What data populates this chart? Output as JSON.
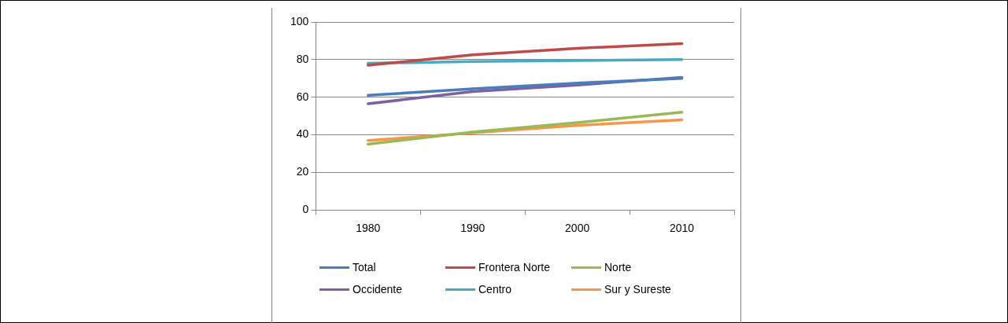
{
  "chart_data": {
    "type": "line",
    "categories": [
      "1980",
      "1990",
      "2000",
      "2010"
    ],
    "series": [
      {
        "name": "Total",
        "color": "#4a7ebb",
        "values": [
          61,
          64.5,
          67.5,
          70
        ]
      },
      {
        "name": "Frontera Norte",
        "color": "#be4b48",
        "values": [
          77,
          82.5,
          86,
          88.5
        ]
      },
      {
        "name": "Norte",
        "color": "#98b954",
        "values": [
          35,
          41.5,
          46.5,
          52
        ]
      },
      {
        "name": "Occidente",
        "color": "#7d60a0",
        "values": [
          56.5,
          63,
          66.5,
          70.5
        ]
      },
      {
        "name": "Centro",
        "color": "#46aac5",
        "values": [
          78,
          79,
          79.5,
          80
        ]
      },
      {
        "name": "Sur y Sureste",
        "color": "#f79646",
        "values": [
          37,
          41,
          45,
          48
        ]
      }
    ],
    "ylim": [
      0,
      100
    ],
    "yticks": [
      0,
      20,
      40,
      60,
      80,
      100
    ],
    "grid": "y",
    "legend": "bottom",
    "marker": "none",
    "line_style": "solid"
  }
}
